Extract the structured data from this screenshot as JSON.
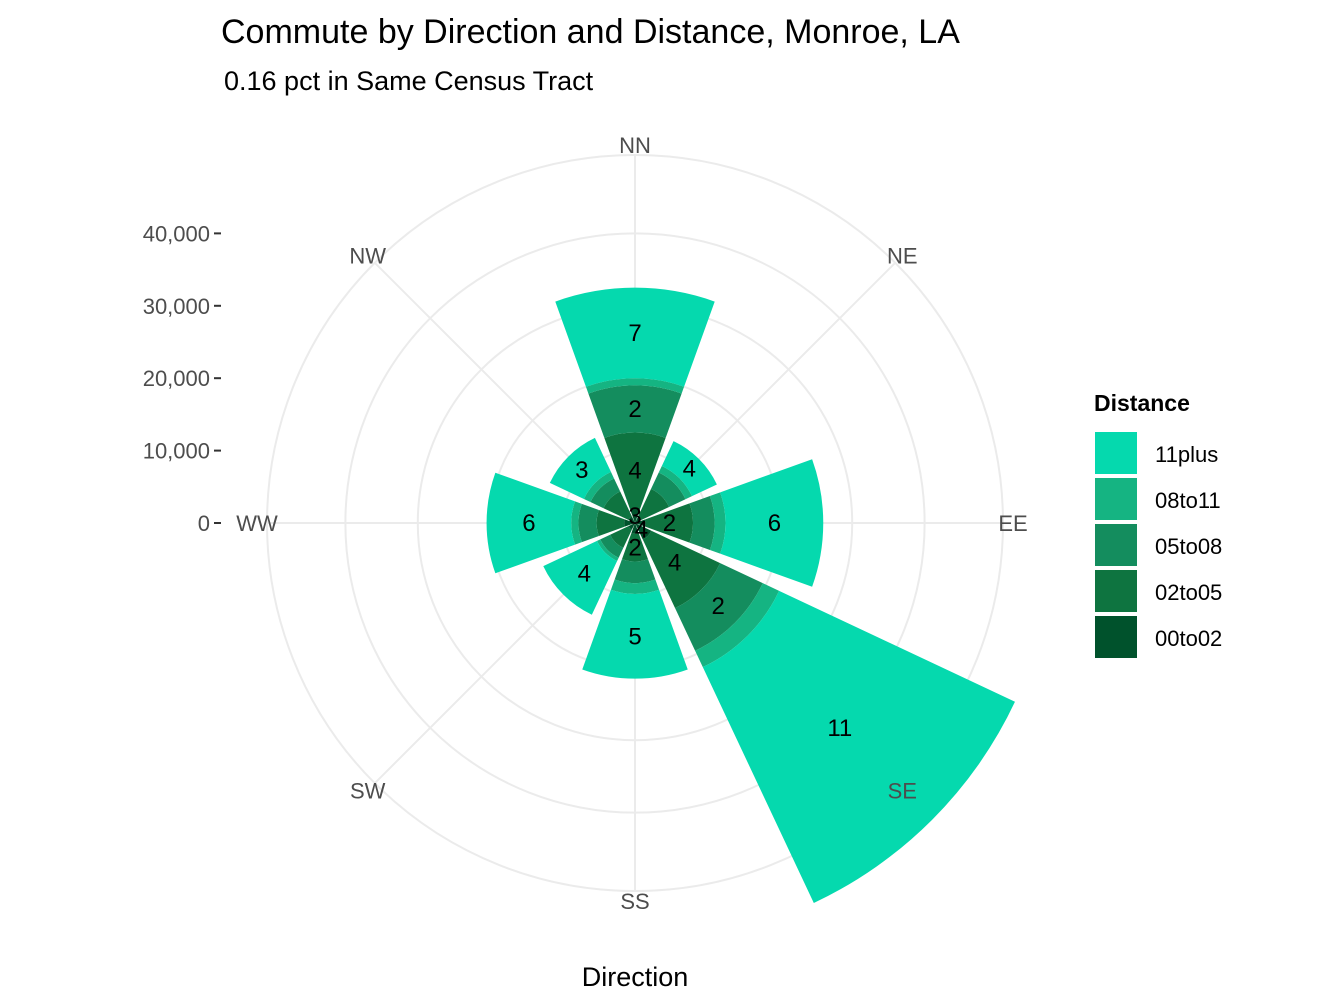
{
  "chart_data": {
    "type": "polar-stacked-bar",
    "title": "Commute by Direction and Distance, Monroe, LA",
    "subtitle": "0.16 pct in Same Census Tract",
    "xlabel": "Direction",
    "ylabel": "",
    "ylim": [
      0,
      40000
    ],
    "y_ticks": [
      {
        "value": 0,
        "label": "0"
      },
      {
        "value": 10000,
        "label": "10,000"
      },
      {
        "value": 20000,
        "label": "20,000"
      },
      {
        "value": 30000,
        "label": "30,000"
      },
      {
        "value": 40000,
        "label": "40,000"
      }
    ],
    "categories": [
      "NN",
      "NE",
      "EE",
      "SE",
      "SS",
      "SW",
      "WW",
      "NW"
    ],
    "series": [
      {
        "name": "00to02",
        "color": "#00522C",
        "values": [
          2000,
          1000,
          1500,
          2500,
          1500,
          1000,
          1500,
          1000
        ]
      },
      {
        "name": "02to05",
        "color": "#0E7440",
        "values": [
          10500,
          4200,
          6500,
          10500,
          3800,
          2800,
          3800,
          3800
        ]
      },
      {
        "name": "05to08",
        "color": "#148D5E",
        "values": [
          6500,
          2500,
          3000,
          6500,
          3000,
          1500,
          2500,
          2000
        ]
      },
      {
        "name": "08to11",
        "color": "#15B482",
        "values": [
          1000,
          1000,
          1500,
          2500,
          1500,
          500,
          1000,
          1000
        ]
      },
      {
        "name": "11plus",
        "color": "#05D9AE",
        "values": [
          12500,
          3800,
          13500,
          36000,
          11700,
          8200,
          11700,
          5200
        ]
      }
    ],
    "labels": [
      {
        "direction": "NN",
        "series": "11plus",
        "text": "7"
      },
      {
        "direction": "NN",
        "series": "05to08",
        "text": "2"
      },
      {
        "direction": "NN",
        "series": "02to05",
        "text": "4"
      },
      {
        "direction": "NN",
        "series": "00to02",
        "text": "3"
      },
      {
        "direction": "NE",
        "series": "11plus",
        "text": "4"
      },
      {
        "direction": "EE",
        "series": "11plus",
        "text": "6"
      },
      {
        "direction": "EE",
        "series": "02to05",
        "text": "2"
      },
      {
        "direction": "SE",
        "series": "11plus",
        "text": "11"
      },
      {
        "direction": "SE",
        "series": "05to08",
        "text": "2"
      },
      {
        "direction": "SE",
        "series": "02to05",
        "text": "4"
      },
      {
        "direction": "SE",
        "series": "00to02",
        "text": "4"
      },
      {
        "direction": "SS",
        "series": "11plus",
        "text": "5"
      },
      {
        "direction": "SS",
        "series": "02to05",
        "text": "2"
      },
      {
        "direction": "SW",
        "series": "11plus",
        "text": "4"
      },
      {
        "direction": "WW",
        "series": "11plus",
        "text": "6"
      },
      {
        "direction": "NW",
        "series": "11plus",
        "text": "3"
      }
    ],
    "legend": {
      "title": "Distance",
      "position": "right",
      "items": [
        "11plus",
        "08to11",
        "05to08",
        "02to05",
        "00to02"
      ]
    },
    "grid": true,
    "background": "#ffffff",
    "grid_color": "#ebebeb"
  }
}
